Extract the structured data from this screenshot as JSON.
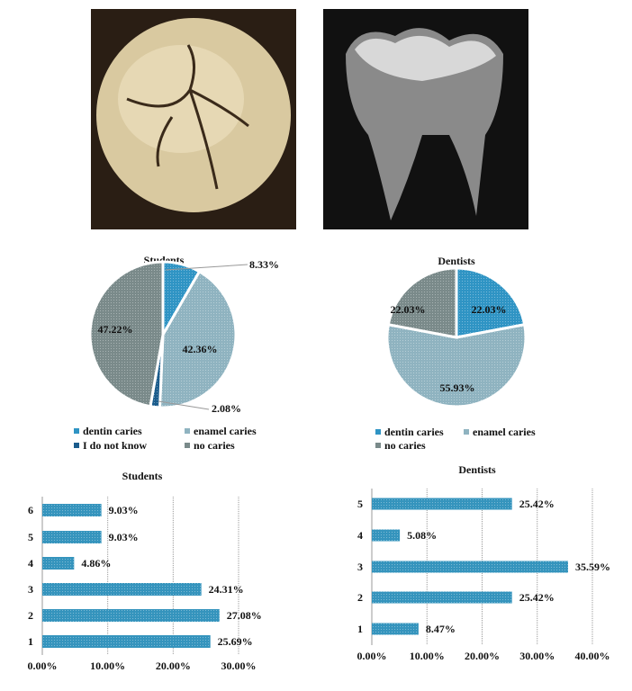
{
  "photos": [
    {
      "subject": "occlusal view of molar tooth with fissure caries"
    },
    {
      "subject": "radiograph of molar tooth"
    }
  ],
  "colors": {
    "dentin": "#2f94c4",
    "enamel": "#8fb3c0",
    "unknown": "#1b5c8c",
    "none": "#7a8a8a",
    "bar": "#3594bd"
  },
  "chart_data": [
    {
      "type": "pie",
      "title": "Students",
      "slices": [
        {
          "name": "dentin caries",
          "value": 8.33,
          "label": "8.33%"
        },
        {
          "name": "enamel caries",
          "value": 42.36,
          "label": "42.36%"
        },
        {
          "name": "I do not know",
          "value": 2.08,
          "label": "2.08%"
        },
        {
          "name": "no caries",
          "value": 47.22,
          "label": "47.22%"
        }
      ],
      "legend": "bottom"
    },
    {
      "type": "pie",
      "title": "Dentists",
      "slices": [
        {
          "name": "dentin caries",
          "value": 22.03,
          "label": "22.03%"
        },
        {
          "name": "enamel caries",
          "value": 55.93,
          "label": "55.93%"
        },
        {
          "name": "no caries",
          "value": 22.03,
          "label": "22.03%"
        }
      ],
      "legend": "bottom"
    },
    {
      "type": "bar",
      "orientation": "horizontal",
      "title": "Students",
      "categories": [
        "1",
        "2",
        "3",
        "4",
        "5",
        "6"
      ],
      "values": [
        25.69,
        27.08,
        24.31,
        4.86,
        9.03,
        9.03
      ],
      "labels": [
        "25.69%",
        "27.08%",
        "24.31%",
        "4.86%",
        "9.03%",
        "9.03%"
      ],
      "xlim": [
        0,
        30
      ],
      "xticks": [
        "0.00%",
        "10.00%",
        "20.00%",
        "30.00%"
      ],
      "grid": true
    },
    {
      "type": "bar",
      "orientation": "horizontal",
      "title": "Dentists",
      "categories": [
        "1",
        "2",
        "3",
        "4",
        "5"
      ],
      "values": [
        8.47,
        25.42,
        35.59,
        5.08,
        25.42
      ],
      "labels": [
        "8.47%",
        "25.42%",
        "35.59%",
        "5.08%",
        "25.42%"
      ],
      "xlim": [
        0,
        40
      ],
      "xticks": [
        "0.00%",
        "10.00%",
        "20.00%",
        "30.00%",
        "40.00%"
      ],
      "grid": true
    }
  ]
}
